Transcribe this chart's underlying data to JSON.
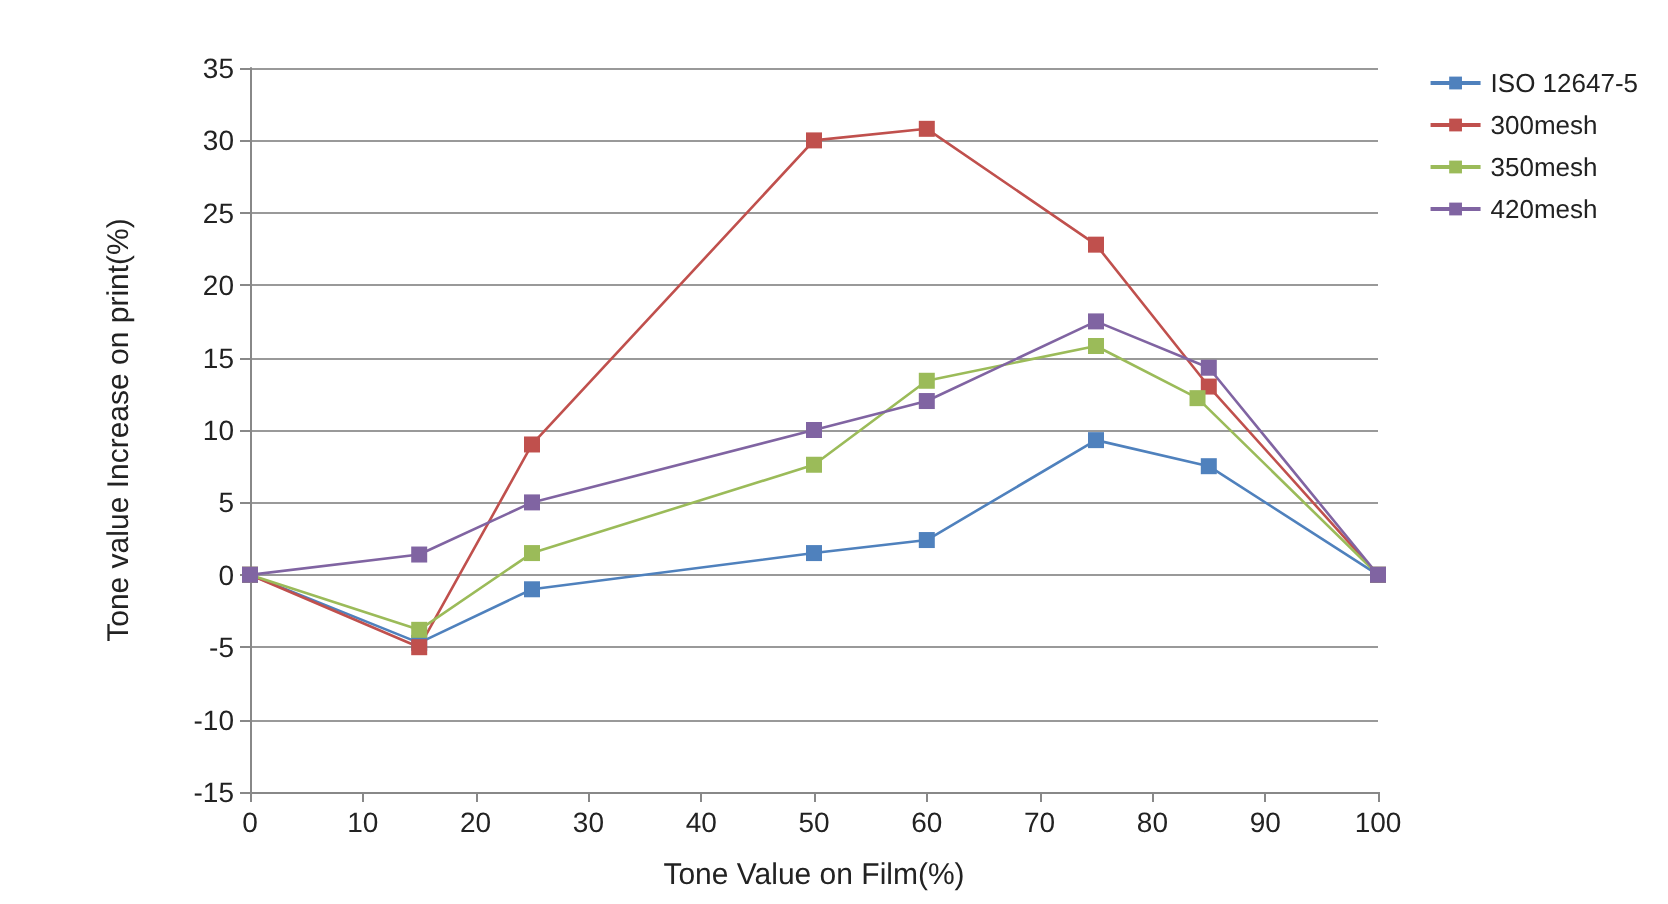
{
  "chart_data": {
    "type": "line",
    "xlabel": "Tone Value on Film(%)",
    "ylabel": "Tone value Increase on print(%)",
    "x": [
      0,
      15,
      25,
      50,
      60,
      75,
      85,
      100
    ],
    "series": [
      {
        "name": "ISO 12647-5",
        "color": "#4f81bd",
        "values": [
          0,
          -4.7,
          -1,
          1.5,
          2.4,
          9.3,
          7.5,
          0
        ]
      },
      {
        "name": "300mesh",
        "color": "#c0504d",
        "values": [
          0,
          -5,
          9,
          30,
          30.8,
          22.8,
          13,
          0
        ]
      },
      {
        "name": "350mesh",
        "color": "#9bbb59",
        "x": [
          0,
          15,
          25,
          50,
          60,
          75,
          84,
          100
        ],
        "values": [
          0,
          -3.8,
          1.5,
          7.6,
          13.4,
          15.8,
          12.2,
          0
        ]
      },
      {
        "name": "420mesh",
        "color": "#8064a2",
        "values": [
          0,
          1.4,
          5,
          10,
          12,
          17.5,
          14.3,
          0
        ]
      }
    ],
    "xlim": [
      0,
      100
    ],
    "xticks": [
      0,
      10,
      20,
      30,
      40,
      50,
      60,
      70,
      80,
      90,
      100
    ],
    "ylim": [
      -15,
      35
    ],
    "yticks": [
      -15,
      -10,
      -5,
      0,
      5,
      10,
      15,
      20,
      25,
      30,
      35
    ],
    "grid": "y",
    "legend": "right",
    "marker": "square",
    "line_style": "solid"
  }
}
